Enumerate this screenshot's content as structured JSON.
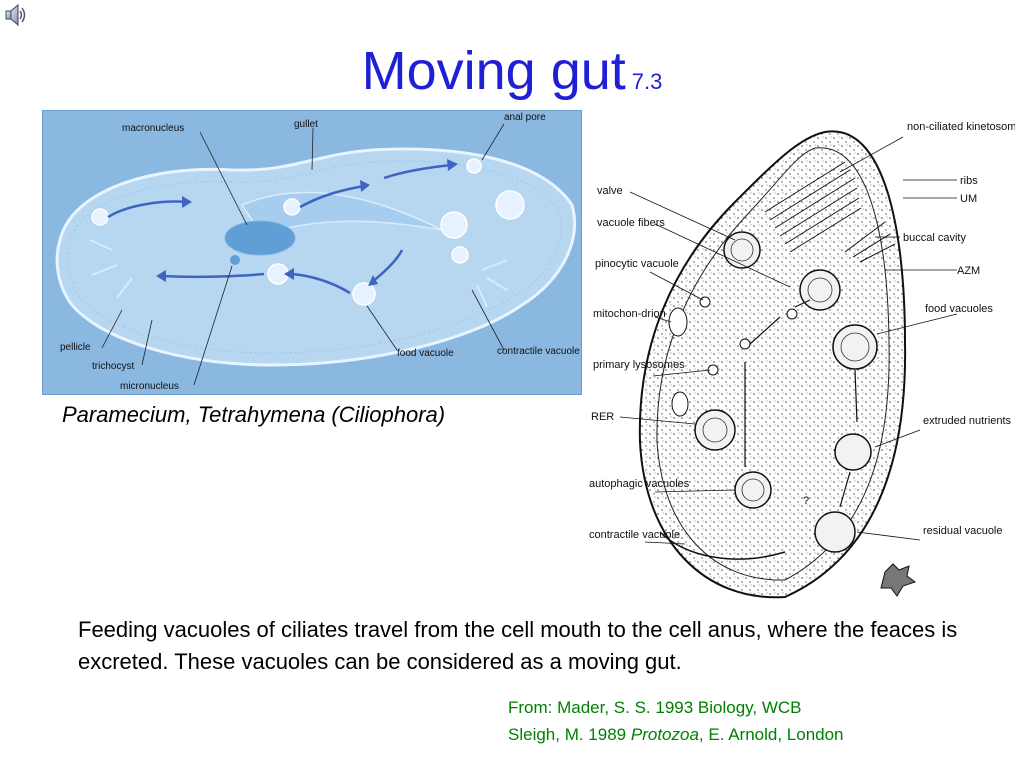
{
  "slide": {
    "title": "Moving gut",
    "title_number": "7.3",
    "left_figure": {
      "caption": "Paramecium, Tetrahymena (Ciliophora)",
      "labels": {
        "macronucleus": "macronucleus",
        "gullet": "gullet",
        "anal_pore": "anal pore",
        "pellicle": "pellicle",
        "trichocyst": "trichocyst",
        "micronucleus": "micronucleus",
        "food_vacuole": "food vacuole",
        "contractile_vacuole": "contractile vacuole"
      }
    },
    "right_figure": {
      "labels": {
        "non_ciliated_kinetosomes": "non-ciliated kinetosomes",
        "ribs": "ribs",
        "um": "UM",
        "buccal_cavity": "buccal cavity",
        "azm": "AZM",
        "food_vacuoles": "food vacuoles",
        "valve": "valve",
        "vacuole_fibers": "vacuole fibers",
        "pinocytic_vacuole": "pinocytic vacuole",
        "mitochondrion": "mitochon-drion",
        "primary_lysosomes": "primary lysosomes",
        "rer": "RER",
        "autophagic_vacuoles": "autophagic vacuoles",
        "contractile_vacuole": "contractile vacuole",
        "extruded_nutrients": "extruded nutrients",
        "residual_vacuole": "residual vacuole",
        "question_mark": "?"
      }
    },
    "body_text": "Feeding vacuoles of ciliates travel from the cell mouth to the cell anus, where the feaces is excreted. These vacuoles can be considered as a moving gut.",
    "source": {
      "line1": "From: Mader, S. S.  1993 Biology, WCB",
      "line2_prefix": "Sleigh, M. 1989 ",
      "line2_italic": "Protozoa",
      "line2_suffix": ", E. Arnold, London"
    }
  },
  "icons": {
    "audio": "speaker-icon"
  },
  "colors": {
    "title": "#1f1fd6",
    "source": "#008000",
    "paramecium_background": "#8ab8e0"
  }
}
